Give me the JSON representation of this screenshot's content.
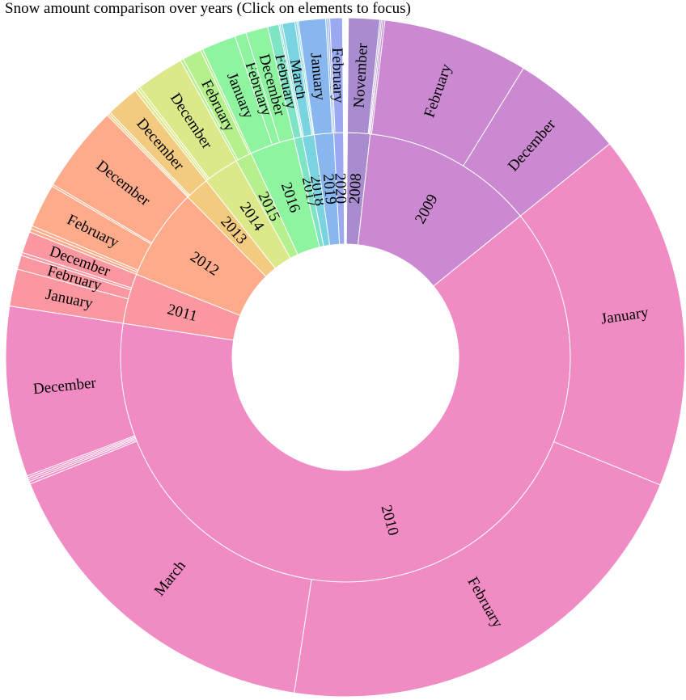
{
  "title": "Snow amount comparison over years (Click on elements to focus)",
  "chart_data": {
    "type": "sunburst",
    "years": [
      {
        "year": "2008",
        "color": "#a98bcf",
        "months": [
          {
            "month": "November",
            "value": 6.2,
            "label": true
          },
          {
            "month": "",
            "value": 0.3
          },
          {
            "month": "",
            "value": 0.3
          }
        ]
      },
      {
        "year": "2009",
        "color": "#cb89d1",
        "months": [
          {
            "month": "",
            "value": 0.4
          },
          {
            "month": "February",
            "value": 29.0,
            "label": true
          },
          {
            "month": "December",
            "value": 22.6,
            "label": true
          }
        ]
      },
      {
        "year": "2010",
        "color": "#f08bc4",
        "months": [
          {
            "month": "January",
            "value": 71.0,
            "label": true
          },
          {
            "month": "February",
            "value": 89.1,
            "label": true
          },
          {
            "month": "March",
            "value": 69.1,
            "label": true
          },
          {
            "month": "",
            "value": 0.5
          },
          {
            "month": "",
            "value": 0.4
          },
          {
            "month": "",
            "value": 0.4
          },
          {
            "month": "",
            "value": 0.4
          },
          {
            "month": "December",
            "value": 33.9,
            "label": true
          }
        ]
      },
      {
        "year": "2011",
        "color": "#fb97a1",
        "months": [
          {
            "month": "January",
            "value": 7.4,
            "label": true
          },
          {
            "month": "February",
            "value": 2.8,
            "label": true
          },
          {
            "month": "",
            "value": 0.6
          },
          {
            "month": "December",
            "value": 4.3,
            "label": true
          }
        ]
      },
      {
        "year": "2012",
        "color": "#fdab8b",
        "months": [
          {
            "month": "",
            "value": 0.7
          },
          {
            "month": "",
            "value": 0.6
          },
          {
            "month": "February",
            "value": 8.7,
            "label": true
          },
          {
            "month": "",
            "value": 0.4
          },
          {
            "month": "December",
            "value": 17.3,
            "label": true
          }
        ]
      },
      {
        "year": "2013",
        "color": "#f2cb80",
        "months": [
          {
            "month": "",
            "value": 0.4
          },
          {
            "month": "",
            "value": 0.4
          },
          {
            "month": "December",
            "value": 6.5,
            "label": true
          }
        ]
      },
      {
        "year": "2014",
        "color": "#dde88b",
        "months": [
          {
            "month": "",
            "value": 0.6
          },
          {
            "month": "",
            "value": 0.5
          },
          {
            "month": "December",
            "value": 9.6,
            "label": true
          }
        ]
      },
      {
        "year": "2015",
        "color": "#b5f08d",
        "months": [
          {
            "month": "",
            "value": 0.6
          },
          {
            "month": "February",
            "value": 3.8,
            "label": true
          },
          {
            "month": "",
            "value": 0.5
          }
        ]
      },
      {
        "year": "2016",
        "color": "#8ef4a0",
        "months": [
          {
            "month": "January",
            "value": 6.8,
            "label": true
          },
          {
            "month": "February",
            "value": 2.3,
            "label": true
          },
          {
            "month": "December",
            "value": 4.4,
            "label": true
          }
        ]
      },
      {
        "year": "2017",
        "color": "#7ee4c5",
        "months": [
          {
            "month": "February",
            "value": 2.2,
            "label": true
          },
          {
            "month": "",
            "value": 0.3
          }
        ]
      },
      {
        "year": "2018",
        "color": "#7ad3e0",
        "months": [
          {
            "month": "",
            "value": 0.4
          },
          {
            "month": "March",
            "value": 2.5,
            "label": true
          },
          {
            "month": "",
            "value": 0.4
          },
          {
            "month": "",
            "value": 0.3
          }
        ]
      },
      {
        "year": "2019",
        "color": "#88b6ee",
        "months": [
          {
            "month": "January",
            "value": 5.4,
            "label": true
          },
          {
            "month": "",
            "value": 0.4
          }
        ]
      },
      {
        "year": "2020",
        "color": "#9aa9f0",
        "months": [
          {
            "month": "",
            "value": 0.4
          },
          {
            "month": "February",
            "value": 2.5,
            "label": true
          }
        ]
      }
    ]
  }
}
